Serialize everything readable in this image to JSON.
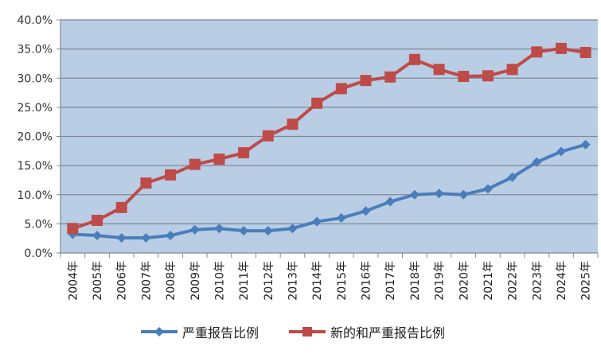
{
  "chart_data": {
    "type": "line",
    "title": "",
    "xlabel": "",
    "ylabel": "",
    "ylim": [
      0,
      40
    ],
    "yticks": [
      "0.0%",
      "5.0%",
      "10.0%",
      "15.0%",
      "20.0%",
      "25.0%",
      "30.0%",
      "35.0%",
      "40.0%"
    ],
    "grid": true,
    "legend_position": "bottom",
    "plot_background": "#b9cde5",
    "categories": [
      "2004年",
      "2005年",
      "2006年",
      "2007年",
      "2008年",
      "2009年",
      "2010年",
      "2011年",
      "2012年",
      "2013年",
      "2014年",
      "2015年",
      "2016年",
      "2017年",
      "2018年",
      "2019年",
      "2020年",
      "2021年",
      "2022年",
      "2023年",
      "2024年",
      "2025年"
    ],
    "series": [
      {
        "name": "严重报告比例",
        "color": "#4a7ebb",
        "marker": "diamond",
        "values": [
          3.2,
          3.0,
          2.6,
          2.6,
          3.0,
          4.0,
          4.2,
          3.8,
          3.8,
          4.2,
          5.4,
          6.0,
          7.2,
          8.8,
          10.0,
          10.2,
          10.0,
          11.0,
          13.0,
          15.6,
          17.4,
          18.6
        ]
      },
      {
        "name": "新的和严重报告比例",
        "color": "#be4b48",
        "marker": "square",
        "values": [
          4.2,
          5.6,
          7.8,
          12.0,
          13.4,
          15.2,
          16.1,
          17.2,
          20.1,
          22.1,
          25.7,
          28.2,
          29.6,
          30.2,
          33.2,
          31.5,
          30.3,
          30.4,
          31.5,
          34.5,
          35.1,
          34.4
        ]
      }
    ]
  },
  "legend": {
    "items": [
      {
        "label": "严重报告比例",
        "color": "#4a7ebb"
      },
      {
        "label": "新的和严重报告比例",
        "color": "#be4b48"
      }
    ]
  }
}
